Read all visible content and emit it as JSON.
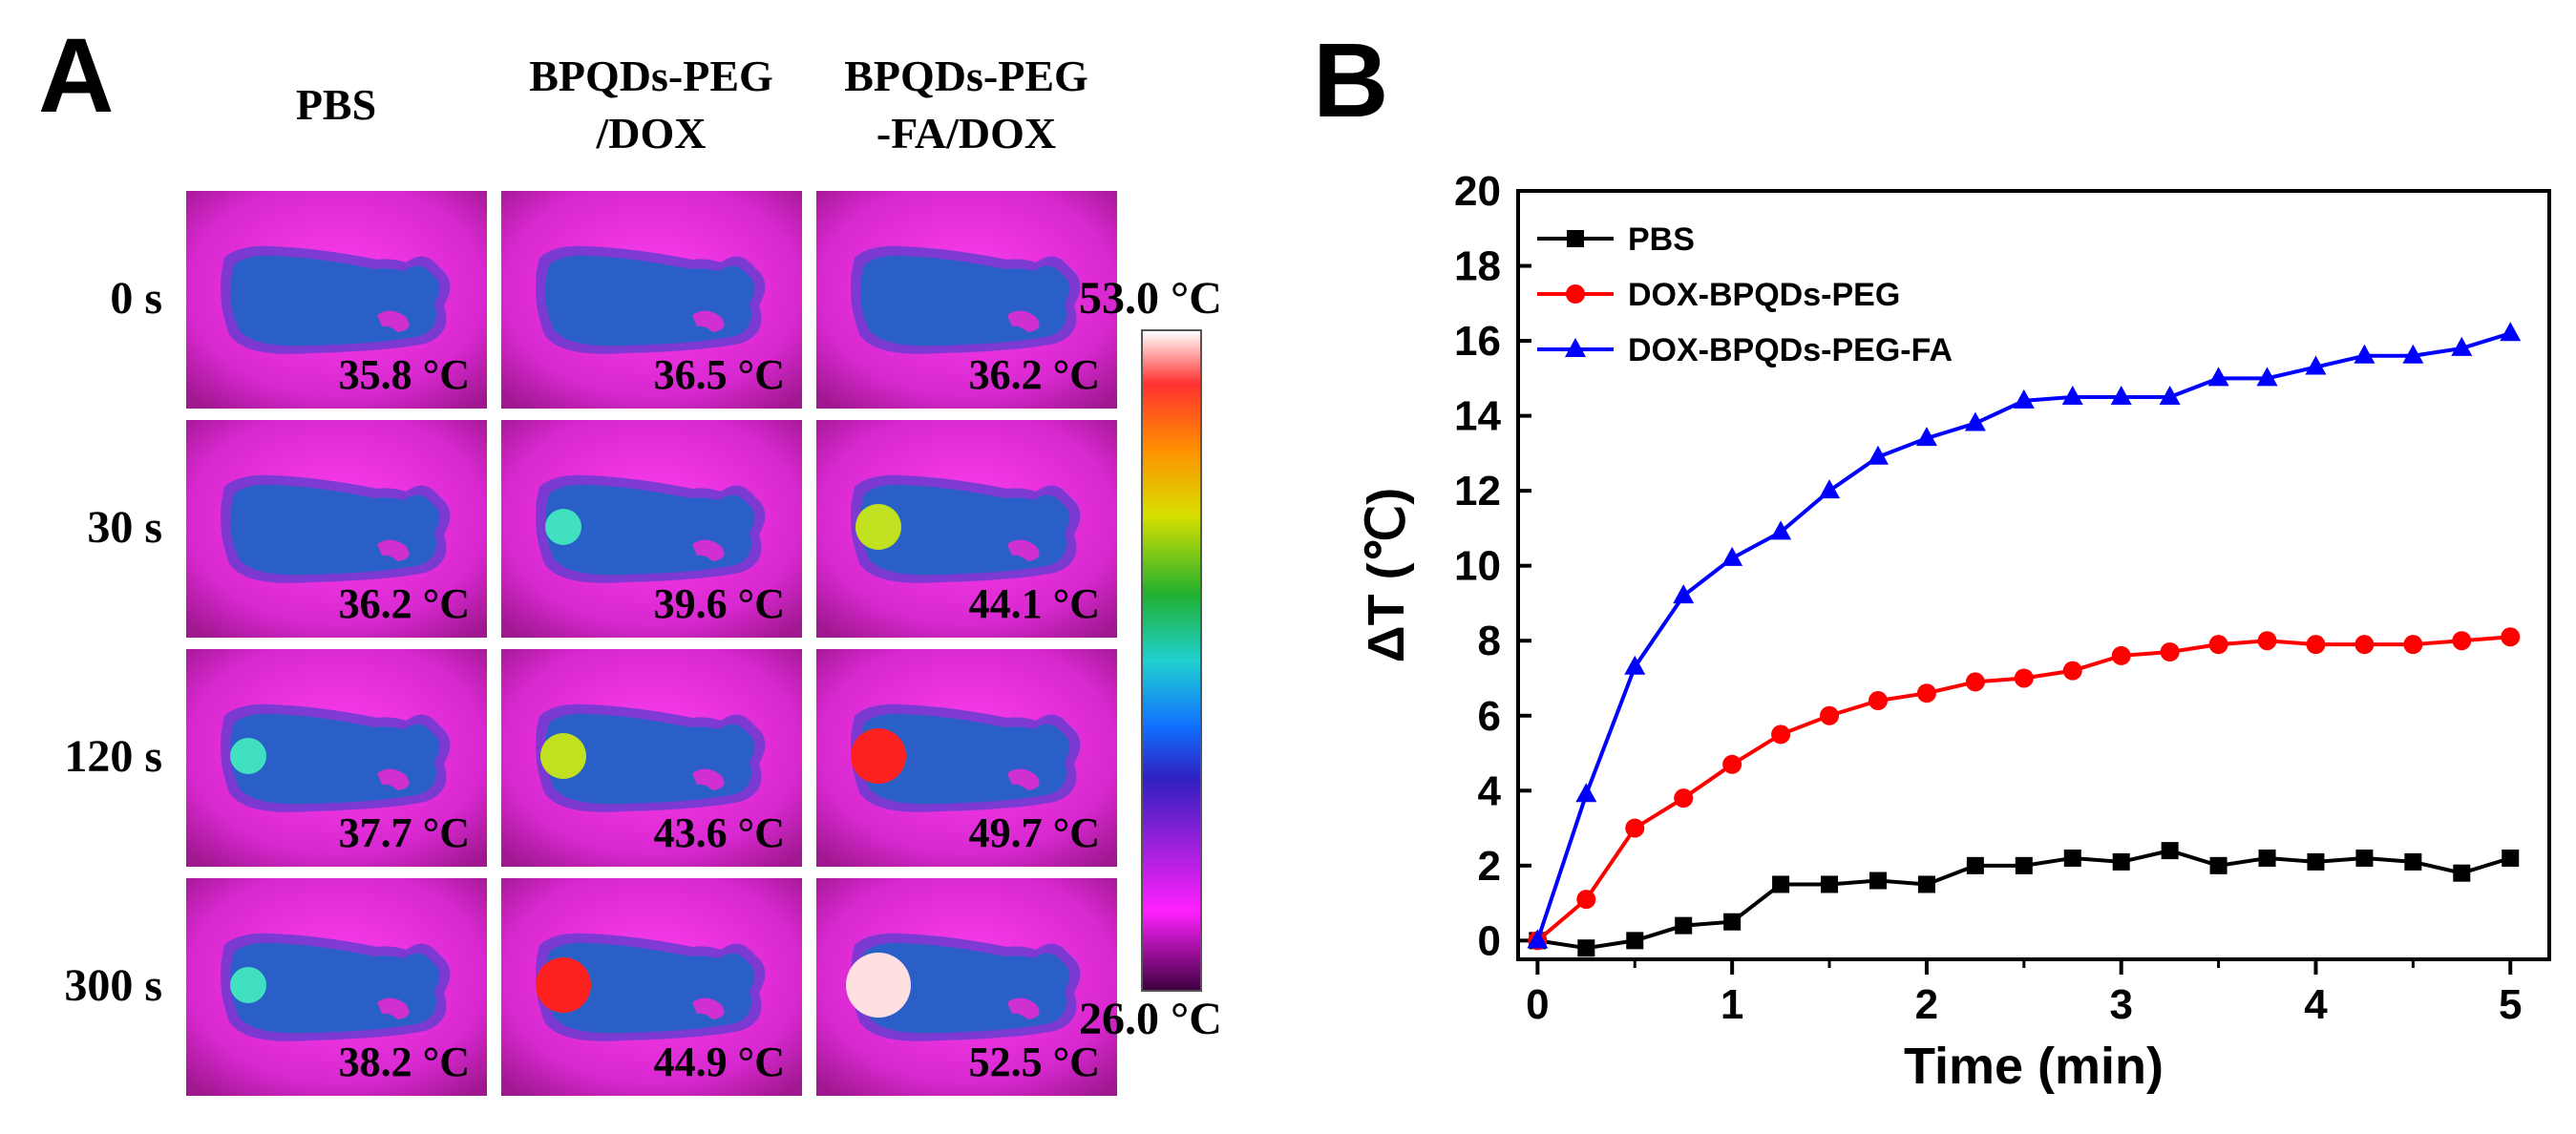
{
  "panel_a": {
    "letter": "A",
    "columns": [
      "PBS",
      "BPQDs-PEG /DOX",
      "BPQDs-PEG -FA/DOX"
    ],
    "column_lines": [
      [
        "PBS"
      ],
      [
        "BPQDs-PEG",
        "/DOX"
      ],
      [
        "BPQDs-PEG",
        "-FA/DOX"
      ]
    ],
    "rows": [
      "0 s",
      "30 s",
      "120 s",
      "300 s"
    ],
    "temperatures": [
      [
        "35.8 °C",
        "36.5 °C",
        "36.2 °C"
      ],
      [
        "36.2 °C",
        "39.6 °C",
        "44.1 °C"
      ],
      [
        "37.7 °C",
        "43.6 °C",
        "49.7 °C"
      ],
      [
        "38.2 °C",
        "44.9 °C",
        "52.5 °C"
      ]
    ],
    "scale_max": "53.0 °C",
    "scale_min": "26.0 °C",
    "colors": {
      "background_magenta": "#e030d8",
      "mouse_blue": "#2a5fc8"
    }
  },
  "panel_b": {
    "letter": "B"
  },
  "chart_data": {
    "type": "line",
    "title": "",
    "xlabel": "Time (min)",
    "ylabel": "ΔT (℃)",
    "xlim": [
      -0.1,
      5.2
    ],
    "ylim": [
      -0.5,
      20
    ],
    "xticks": [
      0,
      1,
      2,
      3,
      4,
      5
    ],
    "yticks": [
      0,
      2,
      4,
      6,
      8,
      10,
      12,
      14,
      16,
      18,
      20
    ],
    "legend_position": "top-left",
    "x": [
      0,
      0.25,
      0.5,
      0.75,
      1.0,
      1.25,
      1.5,
      1.75,
      2.0,
      2.25,
      2.5,
      2.75,
      3.0,
      3.25,
      3.5,
      3.75,
      4.0,
      4.25,
      4.5,
      4.75,
      5.0
    ],
    "series": [
      {
        "name": "PBS",
        "color": "#000000",
        "marker": "square",
        "values": [
          0,
          -0.2,
          0,
          0.4,
          0.5,
          1.5,
          1.5,
          1.6,
          1.5,
          2.0,
          2.0,
          2.2,
          2.1,
          2.4,
          2.0,
          2.2,
          2.1,
          2.2,
          2.1,
          1.8,
          2.2
        ]
      },
      {
        "name": "DOX-BPQDs-PEG",
        "color": "#ff0000",
        "marker": "circle",
        "values": [
          0,
          1.1,
          3.0,
          3.8,
          4.7,
          5.5,
          6.0,
          6.4,
          6.6,
          6.9,
          7.0,
          7.2,
          7.6,
          7.7,
          7.9,
          8.0,
          7.9,
          7.9,
          7.9,
          8.0,
          8.1
        ]
      },
      {
        "name": "DOX-BPQDs-PEG-FA",
        "color": "#0000ff",
        "marker": "triangle",
        "values": [
          0,
          3.9,
          7.3,
          9.2,
          10.2,
          10.9,
          12.0,
          12.9,
          13.4,
          13.8,
          14.4,
          14.5,
          14.5,
          14.5,
          15.0,
          15.0,
          15.3,
          15.6,
          15.6,
          15.8,
          16.2
        ]
      }
    ]
  }
}
